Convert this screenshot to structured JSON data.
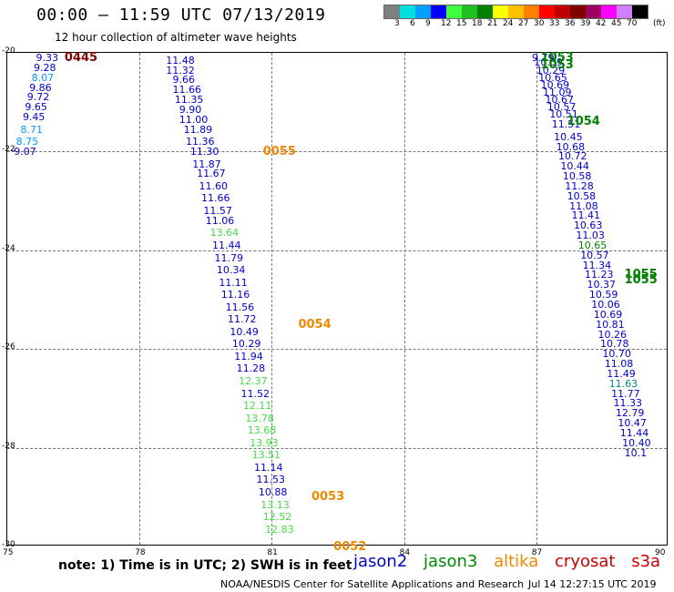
{
  "header": {
    "title": "00:00 – 11:59 UTC 07/13/2019",
    "subtitle": "12 hour collection of altimeter wave heights"
  },
  "legend": {
    "unit": "(ft)",
    "stops": [
      {
        "label": "3",
        "color": "#808080"
      },
      {
        "label": "6",
        "color": "#00e0e0"
      },
      {
        "label": "9",
        "color": "#00a0ff"
      },
      {
        "label": "12",
        "color": "#0000ff"
      },
      {
        "label": "15",
        "color": "#40ff40"
      },
      {
        "label": "18",
        "color": "#20c020"
      },
      {
        "label": "21",
        "color": "#008000"
      },
      {
        "label": "24",
        "color": "#ffff00"
      },
      {
        "label": "27",
        "color": "#ffc000"
      },
      {
        "label": "30",
        "color": "#ff8000"
      },
      {
        "label": "33",
        "color": "#ff0000"
      },
      {
        "label": "36",
        "color": "#c00000"
      },
      {
        "label": "39",
        "color": "#800000"
      },
      {
        "label": "42",
        "color": "#a00060"
      },
      {
        "label": "45",
        "color": "#ff00ff"
      },
      {
        "label": "70",
        "color": "#d080ff"
      },
      {
        "label": "",
        "color": "#000000"
      }
    ]
  },
  "axes": {
    "y_labels": [
      "-20",
      "-22",
      "-24",
      "-26",
      "-28",
      "-30"
    ],
    "x_labels": [
      "75",
      "78",
      "81",
      "84",
      "87",
      "90"
    ]
  },
  "colors": {
    "jason2": "#0000cc",
    "jason3": "#008800",
    "altika": "#ee8800",
    "cryosat": "#cc0000",
    "s3a": "#cc0000"
  },
  "passes": [
    {
      "label": "0445",
      "color": "#800000",
      "lon": 76.3,
      "lat": -20.0
    },
    {
      "label": "0055",
      "color": "#ee8800",
      "lon": 80.8,
      "lat": -21.9
    },
    {
      "label": "0054",
      "color": "#ee8800",
      "lon": 81.6,
      "lat": -25.4
    },
    {
      "label": "0053",
      "color": "#ee8800",
      "lon": 81.9,
      "lat": -28.9
    },
    {
      "label": "0052",
      "color": "#ee8800",
      "lon": 82.4,
      "lat": -29.9
    },
    {
      "label": "1053",
      "color": "#008000",
      "lon": 87.1,
      "lat": -20.0
    },
    {
      "label": "1053",
      "color": "#008000",
      "lon": 87.1,
      "lat": -20.15
    },
    {
      "label": "1054",
      "color": "#008000",
      "lon": 87.7,
      "lat": -21.3
    },
    {
      "label": "1055",
      "color": "#008000",
      "lon": 89.0,
      "lat": -24.4
    },
    {
      "label": "1055",
      "color": "#008000",
      "lon": 89.0,
      "lat": -24.5
    }
  ],
  "tracks": [
    {
      "name": "west",
      "points": [
        {
          "v": "9.33",
          "c": "#0000cc",
          "lon": 75.65,
          "lat": -20.0
        },
        {
          "v": "9.28",
          "c": "#0000cc",
          "lon": 75.6,
          "lat": -20.2
        },
        {
          "v": "8.07",
          "c": "#0099ff",
          "lon": 75.55,
          "lat": -20.4
        },
        {
          "v": "9.86",
          "c": "#0000cc",
          "lon": 75.5,
          "lat": -20.6
        },
        {
          "v": "9.72",
          "c": "#0000cc",
          "lon": 75.45,
          "lat": -20.8
        },
        {
          "v": "9.65",
          "c": "#0000cc",
          "lon": 75.4,
          "lat": -21.0
        },
        {
          "v": "9.45",
          "c": "#0000cc",
          "lon": 75.35,
          "lat": -21.2
        },
        {
          "v": "8.71",
          "c": "#0099ff",
          "lon": 75.3,
          "lat": -21.45
        },
        {
          "v": "8.75",
          "c": "#0099ff",
          "lon": 75.2,
          "lat": -21.7
        },
        {
          "v": "9.07",
          "c": "#0000cc",
          "lon": 75.15,
          "lat": -21.9
        }
      ]
    },
    {
      "name": "central",
      "points": [
        {
          "v": "11.48",
          "c": "#0000cc",
          "lon": 78.6,
          "lat": -20.05
        },
        {
          "v": "11.32",
          "c": "#0000cc",
          "lon": 78.6,
          "lat": -20.25
        },
        {
          "v": "9.66",
          "c": "#0000cc",
          "lon": 78.75,
          "lat": -20.45
        },
        {
          "v": "11.66",
          "c": "#0000cc",
          "lon": 78.75,
          "lat": -20.65
        },
        {
          "v": "11.35",
          "c": "#0000cc",
          "lon": 78.8,
          "lat": -20.85
        },
        {
          "v": "9.90",
          "c": "#0000cc",
          "lon": 78.9,
          "lat": -21.05
        },
        {
          "v": "11.00",
          "c": "#0000cc",
          "lon": 78.9,
          "lat": -21.25
        },
        {
          "v": "11.89",
          "c": "#0000cc",
          "lon": 79.0,
          "lat": -21.45
        },
        {
          "v": "11.36",
          "c": "#0000cc",
          "lon": 79.05,
          "lat": -21.7
        },
        {
          "v": "11.30",
          "c": "#0000cc",
          "lon": 79.15,
          "lat": -21.9
        },
        {
          "v": "11.87",
          "c": "#0000cc",
          "lon": 79.2,
          "lat": -22.15
        },
        {
          "v": "11.67",
          "c": "#0000cc",
          "lon": 79.3,
          "lat": -22.35
        },
        {
          "v": "11.60",
          "c": "#0000cc",
          "lon": 79.35,
          "lat": -22.6
        },
        {
          "v": "11.66",
          "c": "#0000cc",
          "lon": 79.4,
          "lat": -22.85
        },
        {
          "v": "11.57",
          "c": "#0000cc",
          "lon": 79.45,
          "lat": -23.1
        },
        {
          "v": "11.06",
          "c": "#0000cc",
          "lon": 79.5,
          "lat": -23.3
        },
        {
          "v": "13.64",
          "c": "#44dd44",
          "lon": 79.6,
          "lat": -23.55
        },
        {
          "v": "11.44",
          "c": "#0000cc",
          "lon": 79.65,
          "lat": -23.8
        },
        {
          "v": "11.79",
          "c": "#0000cc",
          "lon": 79.7,
          "lat": -24.05
        },
        {
          "v": "10.34",
          "c": "#0000cc",
          "lon": 79.75,
          "lat": -24.3
        },
        {
          "v": "11.11",
          "c": "#0000cc",
          "lon": 79.8,
          "lat": -24.55
        },
        {
          "v": "11.16",
          "c": "#0000cc",
          "lon": 79.85,
          "lat": -24.8
        },
        {
          "v": "11.56",
          "c": "#0000cc",
          "lon": 79.95,
          "lat": -25.05
        },
        {
          "v": "11.72",
          "c": "#0000cc",
          "lon": 80.0,
          "lat": -25.3
        },
        {
          "v": "10.49",
          "c": "#0000cc",
          "lon": 80.05,
          "lat": -25.55
        },
        {
          "v": "10.29",
          "c": "#0000cc",
          "lon": 80.1,
          "lat": -25.8
        },
        {
          "v": "11.94",
          "c": "#0000cc",
          "lon": 80.15,
          "lat": -26.05
        },
        {
          "v": "11.28",
          "c": "#0000cc",
          "lon": 80.2,
          "lat": -26.3
        },
        {
          "v": "12.37",
          "c": "#44dd44",
          "lon": 80.25,
          "lat": -26.55
        },
        {
          "v": "11.52",
          "c": "#0000cc",
          "lon": 80.3,
          "lat": -26.8
        },
        {
          "v": "12.11",
          "c": "#44dd44",
          "lon": 80.35,
          "lat": -27.05
        },
        {
          "v": "13.78",
          "c": "#44dd44",
          "lon": 80.4,
          "lat": -27.3
        },
        {
          "v": "13.68",
          "c": "#44dd44",
          "lon": 80.45,
          "lat": -27.55
        },
        {
          "v": "13.93",
          "c": "#44dd44",
          "lon": 80.5,
          "lat": -27.8
        },
        {
          "v": "13.51",
          "c": "#44dd44",
          "lon": 80.55,
          "lat": -28.05
        },
        {
          "v": "11.14",
          "c": "#0000cc",
          "lon": 80.6,
          "lat": -28.3
        },
        {
          "v": "11.53",
          "c": "#0000cc",
          "lon": 80.65,
          "lat": -28.55
        },
        {
          "v": "10.88",
          "c": "#0000cc",
          "lon": 80.7,
          "lat": -28.8
        },
        {
          "v": "13.13",
          "c": "#44dd44",
          "lon": 80.75,
          "lat": -29.05
        },
        {
          "v": "12.52",
          "c": "#44dd44",
          "lon": 80.8,
          "lat": -29.3
        },
        {
          "v": "12.83",
          "c": "#44dd44",
          "lon": 80.85,
          "lat": -29.55
        }
      ]
    },
    {
      "name": "east",
      "points": [
        {
          "v": "9.79",
          "c": "#0000cc",
          "lon": 86.9,
          "lat": -20.0
        },
        {
          "v": "10.59",
          "c": "#0000cc",
          "lon": 86.95,
          "lat": -20.1
        },
        {
          "v": "10.29",
          "c": "#0000cc",
          "lon": 87.0,
          "lat": -20.25
        },
        {
          "v": "10.65",
          "c": "#0000cc",
          "lon": 87.05,
          "lat": -20.4
        },
        {
          "v": "10.69",
          "c": "#0000cc",
          "lon": 87.1,
          "lat": -20.55
        },
        {
          "v": "11.09",
          "c": "#0000cc",
          "lon": 87.15,
          "lat": -20.7
        },
        {
          "v": "10.67",
          "c": "#0000cc",
          "lon": 87.2,
          "lat": -20.85
        },
        {
          "v": "10.57",
          "c": "#0000cc",
          "lon": 87.25,
          "lat": -21.0
        },
        {
          "v": "10.51",
          "c": "#0000cc",
          "lon": 87.3,
          "lat": -21.15
        },
        {
          "v": "11.51",
          "c": "#0000cc",
          "lon": 87.35,
          "lat": -21.35
        },
        {
          "v": "10.45",
          "c": "#0000cc",
          "lon": 87.4,
          "lat": -21.6
        },
        {
          "v": "10.68",
          "c": "#0000cc",
          "lon": 87.45,
          "lat": -21.8
        },
        {
          "v": "10.72",
          "c": "#0000cc",
          "lon": 87.5,
          "lat": -22.0
        },
        {
          "v": "10.44",
          "c": "#0000cc",
          "lon": 87.55,
          "lat": -22.2
        },
        {
          "v": "10.58",
          "c": "#0000cc",
          "lon": 87.6,
          "lat": -22.4
        },
        {
          "v": "11.28",
          "c": "#0000cc",
          "lon": 87.65,
          "lat": -22.6
        },
        {
          "v": "10.58",
          "c": "#0000cc",
          "lon": 87.7,
          "lat": -22.8
        },
        {
          "v": "11.08",
          "c": "#0000cc",
          "lon": 87.75,
          "lat": -23.0
        },
        {
          "v": "11.41",
          "c": "#0000cc",
          "lon": 87.8,
          "lat": -23.2
        },
        {
          "v": "10.63",
          "c": "#0000cc",
          "lon": 87.85,
          "lat": -23.4
        },
        {
          "v": "11.03",
          "c": "#0000cc",
          "lon": 87.9,
          "lat": -23.6
        },
        {
          "v": "10.65",
          "c": "#008800",
          "lon": 87.95,
          "lat": -23.8
        },
        {
          "v": "10.57",
          "c": "#0000cc",
          "lon": 88.0,
          "lat": -24.0
        },
        {
          "v": "11.34",
          "c": "#0000cc",
          "lon": 88.05,
          "lat": -24.2
        },
        {
          "v": "11.23",
          "c": "#0000cc",
          "lon": 88.1,
          "lat": -24.4
        },
        {
          "v": "10.37",
          "c": "#0000cc",
          "lon": 88.15,
          "lat": -24.6
        },
        {
          "v": "10.59",
          "c": "#0000cc",
          "lon": 88.2,
          "lat": -24.8
        },
        {
          "v": "10.06",
          "c": "#0000cc",
          "lon": 88.25,
          "lat": -25.0
        },
        {
          "v": "10.69",
          "c": "#0000cc",
          "lon": 88.3,
          "lat": -25.2
        },
        {
          "v": "10.81",
          "c": "#0000cc",
          "lon": 88.35,
          "lat": -25.4
        },
        {
          "v": "10.26",
          "c": "#0000cc",
          "lon": 88.4,
          "lat": -25.6
        },
        {
          "v": "10.78",
          "c": "#0000cc",
          "lon": 88.45,
          "lat": -25.8
        },
        {
          "v": "10.70",
          "c": "#0000cc",
          "lon": 88.5,
          "lat": -26.0
        },
        {
          "v": "11.08",
          "c": "#0000cc",
          "lon": 88.55,
          "lat": -26.2
        },
        {
          "v": "11.49",
          "c": "#0000cc",
          "lon": 88.6,
          "lat": -26.4
        },
        {
          "v": "11.63",
          "c": "#008888",
          "lon": 88.65,
          "lat": -26.6
        },
        {
          "v": "11.77",
          "c": "#0000cc",
          "lon": 88.7,
          "lat": -26.8
        },
        {
          "v": "11.33",
          "c": "#0000cc",
          "lon": 88.75,
          "lat": -27.0
        },
        {
          "v": "12.79",
          "c": "#0000cc",
          "lon": 88.8,
          "lat": -27.2
        },
        {
          "v": "10.47",
          "c": "#0000cc",
          "lon": 88.85,
          "lat": -27.4
        },
        {
          "v": "11.44",
          "c": "#0000cc",
          "lon": 88.9,
          "lat": -27.6
        },
        {
          "v": "10.40",
          "c": "#0000cc",
          "lon": 88.95,
          "lat": -27.8
        },
        {
          "v": "10.1",
          "c": "#0000cc",
          "lon": 89.0,
          "lat": -28.0
        }
      ]
    }
  ],
  "footer": {
    "note": "note: 1) Time is in UTC; 2) SWH is in feet",
    "sat_jason2": "jason2",
    "sat_jason3": "jason3",
    "sat_altika": "altika",
    "sat_cryosat": "cryosat",
    "sat_s3a": "s3a",
    "credit": "NOAA/NESDIS Center for Satellite Applications and Research",
    "timestamp": "Jul 14 12:27:15 UTC 2019"
  }
}
